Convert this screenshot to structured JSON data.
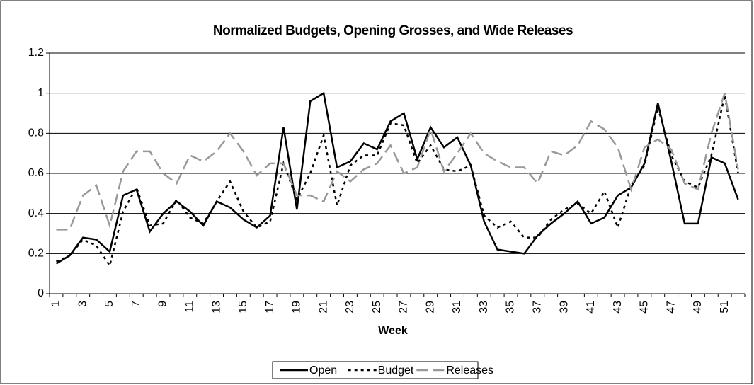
{
  "chart_data": {
    "type": "line",
    "title": "Normalized Budgets, Opening Grosses, and Wide Releases",
    "x_label": "Week",
    "categories": [
      1,
      null,
      3,
      null,
      5,
      null,
      7,
      null,
      9,
      null,
      11,
      null,
      13,
      null,
      15,
      null,
      17,
      null,
      19,
      null,
      21,
      null,
      23,
      null,
      25,
      null,
      27,
      null,
      29,
      null,
      31,
      null,
      33,
      null,
      35,
      null,
      37,
      null,
      39,
      null,
      41,
      null,
      43,
      null,
      45,
      null,
      47,
      null,
      49,
      null,
      51,
      null
    ],
    "series": [
      {
        "name": "Open",
        "color": "#000000",
        "dash": "solid",
        "values": [
          0.15,
          0.19,
          0.28,
          0.27,
          0.21,
          0.49,
          0.52,
          0.31,
          0.4,
          0.46,
          0.41,
          0.34,
          0.46,
          0.43,
          0.37,
          0.33,
          0.39,
          0.83,
          0.42,
          0.96,
          1.0,
          0.63,
          0.66,
          0.75,
          0.72,
          0.86,
          0.9,
          0.67,
          0.83,
          0.73,
          0.78,
          0.64,
          0.36,
          0.22,
          0.21,
          0.2,
          0.29,
          0.35,
          0.4,
          0.46,
          0.35,
          0.38,
          0.49,
          0.53,
          0.65,
          0.95,
          0.66,
          0.35,
          0.35,
          0.68,
          0.65,
          0.47
        ]
      },
      {
        "name": "Budget",
        "color": "#000000",
        "dash": "dotted",
        "values": [
          0.16,
          0.19,
          0.27,
          0.24,
          0.14,
          0.41,
          0.53,
          0.34,
          0.35,
          0.47,
          0.38,
          0.35,
          0.46,
          0.56,
          0.41,
          0.33,
          0.36,
          0.65,
          0.47,
          0.6,
          0.79,
          0.44,
          0.64,
          0.69,
          0.69,
          0.85,
          0.84,
          0.65,
          0.74,
          0.62,
          0.61,
          0.64,
          0.39,
          0.33,
          0.36,
          0.28,
          0.28,
          0.37,
          0.42,
          0.45,
          0.4,
          0.51,
          0.33,
          0.54,
          0.64,
          0.93,
          0.69,
          0.56,
          0.53,
          0.69,
          0.99,
          0.6
        ]
      },
      {
        "name": "Releases",
        "color": "#999999",
        "dash": "dashed",
        "values": [
          0.32,
          0.32,
          0.49,
          0.54,
          0.34,
          0.61,
          0.71,
          0.71,
          0.6,
          0.55,
          0.69,
          0.66,
          0.71,
          0.8,
          0.71,
          0.59,
          0.65,
          0.65,
          0.49,
          0.49,
          0.46,
          0.61,
          0.56,
          0.62,
          0.65,
          0.74,
          0.6,
          0.63,
          0.82,
          0.61,
          0.7,
          0.8,
          0.7,
          0.66,
          0.63,
          0.63,
          0.55,
          0.71,
          0.69,
          0.74,
          0.86,
          0.82,
          0.73,
          0.52,
          0.73,
          0.77,
          0.72,
          0.55,
          0.52,
          0.8,
          1.0,
          0.62
        ]
      }
    ],
    "ylim": [
      0,
      1.2
    ],
    "yticks": [
      0,
      0.2,
      0.4,
      0.6,
      0.8,
      1,
      1.2
    ],
    "grid": true,
    "legend": "bottom"
  }
}
